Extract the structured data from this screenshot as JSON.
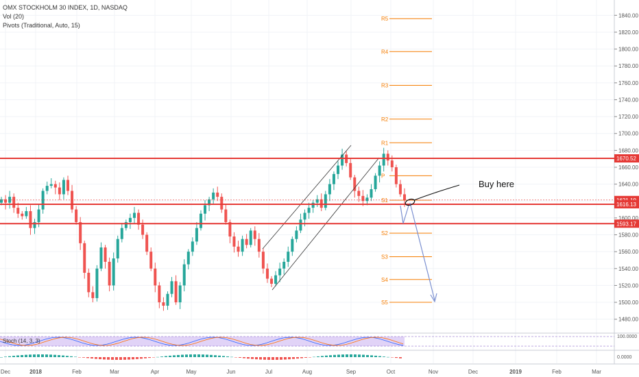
{
  "header": {
    "symbol_line": "OMX STOCKHOLM 30 INDEX, 1D, NASDAQ",
    "vol_line": "Vol (20)",
    "pivots_line": "Pivots (Traditional, Auto, 15)"
  },
  "indicators": {
    "stoch_label": "Stoch (14, 3, 3)",
    "stoch_axis_top": "100.0000",
    "momentum_axis": "0.0000"
  },
  "annotation": {
    "text": "Buy here"
  },
  "colors": {
    "up": "#26a69a",
    "down": "#ef5350",
    "resistance": "#e53935",
    "pivot": "#f57c00",
    "arrow": "#7a8fd0",
    "stoch_band": "#d9c8f5"
  },
  "chart_data": {
    "type": "candlestick",
    "y_axis_ticks": [
      1840,
      1820,
      1800,
      1780,
      1760,
      1740,
      1720,
      1700,
      1680,
      1660,
      1640,
      1620,
      1600,
      1580,
      1560,
      1540,
      1520,
      1500,
      1480
    ],
    "x_axis_labels": [
      "Dec",
      "2018",
      "Feb",
      "Mar",
      "Apr",
      "May",
      "Jun",
      "Jul",
      "Aug",
      "Sep",
      "Oct",
      "Nov",
      "Dec",
      "2019",
      "Feb",
      "Mar"
    ],
    "price_labels": [
      {
        "value": 1670.52,
        "text": "1670.52",
        "color": "#e53935"
      },
      {
        "value": 1621.19,
        "text": "1621.19",
        "color": "#e53935"
      },
      {
        "value": 1616.13,
        "text": "1616.13",
        "color": "#e53935"
      },
      {
        "value": 1593.17,
        "text": "1593.17",
        "color": "#e53935"
      }
    ],
    "horizontal_levels": [
      1670.52,
      1616.13,
      1593.17
    ],
    "pivots": [
      {
        "label": "R5",
        "value": 1836
      },
      {
        "label": "R4",
        "value": 1797
      },
      {
        "label": "R3",
        "value": 1757
      },
      {
        "label": "R2",
        "value": 1717
      },
      {
        "label": "R1",
        "value": 1689
      },
      {
        "label": "P",
        "value": 1650
      },
      {
        "label": "S1",
        "value": 1621
      },
      {
        "label": "S2",
        "value": 1582
      },
      {
        "label": "S3",
        "value": 1554
      },
      {
        "label": "S4",
        "value": 1527
      },
      {
        "label": "S5",
        "value": 1500
      }
    ],
    "price_series_close": [
      1622,
      1618,
      1625,
      1612,
      1605,
      1602,
      1608,
      1588,
      1595,
      1610,
      1632,
      1638,
      1640,
      1636,
      1628,
      1645,
      1632,
      1610,
      1595,
      1570,
      1535,
      1512,
      1505,
      1540,
      1565,
      1548,
      1520,
      1552,
      1575,
      1588,
      1595,
      1600,
      1606,
      1592,
      1580,
      1560,
      1540,
      1520,
      1500,
      1496,
      1510,
      1525,
      1500,
      1520,
      1545,
      1560,
      1572,
      1588,
      1605,
      1615,
      1622,
      1630,
      1625,
      1610,
      1595,
      1578,
      1566,
      1560,
      1575,
      1568,
      1585,
      1575,
      1560,
      1540,
      1528,
      1522,
      1532,
      1540,
      1548,
      1560,
      1575,
      1585,
      1598,
      1606,
      1612,
      1618,
      1622,
      1612,
      1628,
      1640,
      1652,
      1662,
      1675,
      1665,
      1648,
      1632,
      1626,
      1620,
      1624,
      1634,
      1650,
      1662,
      1676,
      1668,
      1660,
      1640,
      1628,
      1621
    ]
  }
}
